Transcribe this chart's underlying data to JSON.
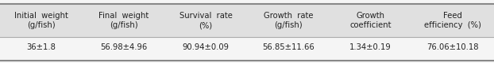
{
  "headers": [
    "Initial  weight\n(g/fish)",
    "Final  weight\n(g/fish)",
    "Survival  rate\n(%)",
    "Growth  rate\n(g/fish)",
    "Growth\ncoefficient",
    "Feed\nefficiency  (%)"
  ],
  "values": [
    "36±1.8",
    "56.98±4.96",
    "90.94±0.09",
    "56.85±11.66",
    "1.34±0.19",
    "76.06±10.18"
  ],
  "header_bg": "#e0e0e0",
  "value_bg": "#f5f5f5",
  "top_line_color": "#888888",
  "mid_line_color": "#aaaaaa",
  "bot_line_color": "#888888",
  "text_color": "#222222",
  "header_fontsize": 7.2,
  "value_fontsize": 7.2,
  "fig_width": 6.22,
  "fig_height": 0.8,
  "dpi": 100
}
